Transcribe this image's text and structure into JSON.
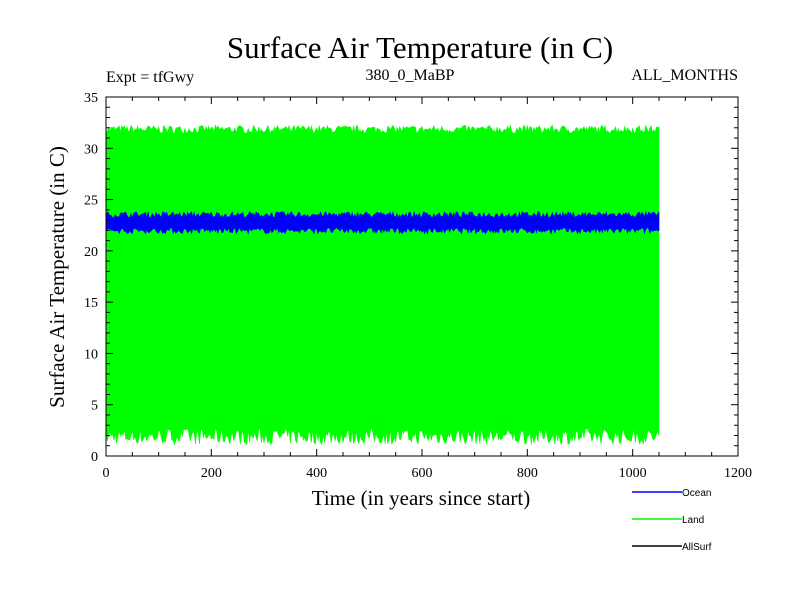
{
  "chart_data": {
    "type": "area",
    "title": "Surface Air Temperature (in C)",
    "subtitle_left": "Expt = tfGwy",
    "subtitle_center": "380_0_MaBP",
    "subtitle_right": "ALL_MONTHS",
    "xlabel": "Time (in years since start)",
    "ylabel": "Surface Air Temperature (in C)",
    "xlim": [
      0,
      1200
    ],
    "ylim": [
      0,
      35
    ],
    "x_ticks": [
      0,
      200,
      400,
      600,
      800,
      1000,
      1200
    ],
    "y_ticks": [
      0,
      5,
      10,
      15,
      20,
      25,
      30,
      35
    ],
    "x_tick_labels": [
      "0",
      "200",
      "400",
      "600",
      "800",
      "1000",
      "1200"
    ],
    "y_tick_labels": [
      "0",
      "5",
      "10",
      "15",
      "20",
      "25",
      "30",
      "35"
    ],
    "legend_position": "bottom-right, outside plot",
    "series": [
      {
        "name": "Land",
        "color": "#00ff00",
        "x_range": [
          0,
          1050
        ],
        "min_envelope": 2.0,
        "max_envelope": 31.8,
        "description": "monthly values oscillating between roughly 1–2.5 and 31–32.3 C"
      },
      {
        "name": "Ocean",
        "color": "#0000ff",
        "x_range": [
          0,
          1050
        ],
        "min_envelope": 22.0,
        "max_envelope": 23.5,
        "description": "monthly values oscillating between roughly 21.6 and 23.8 C"
      },
      {
        "name": "AllSurf",
        "color": "#000000",
        "x_range": [
          0,
          1050
        ],
        "description": "not visible (hidden behind other series)"
      }
    ]
  }
}
